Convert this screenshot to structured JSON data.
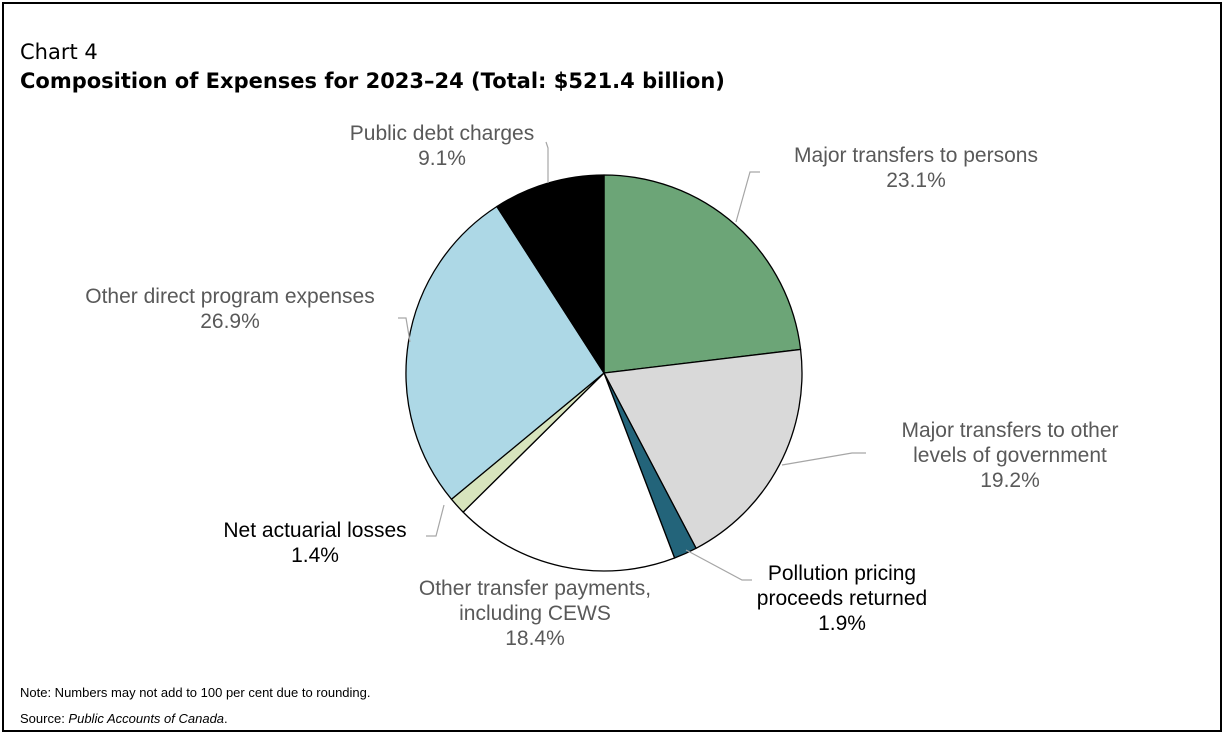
{
  "header": {
    "kicker": "Chart 4",
    "title": "Composition of Expenses for 2023–24 (Total: $521.4 billion)"
  },
  "footer": {
    "note": "Note: Numbers may not add to 100 per cent due to rounding.",
    "source_prefix": "Source: ",
    "source_title": "Public Accounts of Canada",
    "source_suffix": "."
  },
  "chart_data": {
    "type": "pie",
    "title": "Composition of Expenses for 2023–24 (Total: $521.4 billion)",
    "unit": "%",
    "slices": [
      {
        "label_lines": [
          "Major transfers to persons"
        ],
        "value_label": "23.1%",
        "value": 23.1,
        "color": "#6ca577",
        "label_color": "#595959"
      },
      {
        "label_lines": [
          "Major transfers to other",
          "levels of government"
        ],
        "value_label": "19.2%",
        "value": 19.2,
        "color": "#d9d9d9",
        "label_color": "#595959"
      },
      {
        "label_lines": [
          "Pollution pricing",
          "proceeds returned"
        ],
        "value_label": "1.9%",
        "value": 1.9,
        "color": "#23647a",
        "label_color": "#000000"
      },
      {
        "label_lines": [
          "Other transfer payments,",
          "including CEWS"
        ],
        "value_label": "18.4%",
        "value": 18.4,
        "color": "#ffffff",
        "label_color": "#595959"
      },
      {
        "label_lines": [
          "Net actuarial losses"
        ],
        "value_label": "1.4%",
        "value": 1.4,
        "color": "#d7e4bd",
        "label_color": "#000000"
      },
      {
        "label_lines": [
          "Other direct program expenses"
        ],
        "value_label": "26.9%",
        "value": 26.9,
        "color": "#add8e6",
        "label_color": "#595959"
      },
      {
        "label_lines": [
          "Public debt charges"
        ],
        "value_label": "9.1%",
        "value": 9.1,
        "color": "#000000",
        "label_color": "#595959"
      }
    ]
  }
}
